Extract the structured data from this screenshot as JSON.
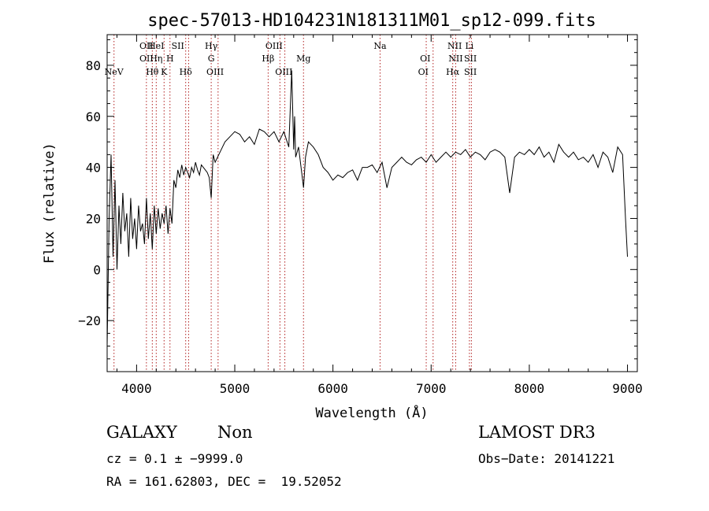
{
  "chart_data": {
    "type": "line",
    "title": "spec-57013-HD104231N181311M01_sp12-099.fits",
    "xlabel": "Wavelength (Å)",
    "ylabel": "Flux (relative)",
    "xlim": [
      3700,
      9100
    ],
    "ylim": [
      -40,
      92
    ],
    "x_ticks": [
      {
        "value": 4000,
        "label": "4000"
      },
      {
        "value": 5000,
        "label": "5000"
      },
      {
        "value": 6000,
        "label": "6000"
      },
      {
        "value": 7000,
        "label": "7000"
      },
      {
        "value": 8000,
        "label": "8000"
      },
      {
        "value": 9000,
        "label": "9000"
      }
    ],
    "y_ticks": [
      {
        "value": -20,
        "label": "−20"
      },
      {
        "value": 0,
        "label": "0"
      },
      {
        "value": 20,
        "label": "20"
      },
      {
        "value": 40,
        "label": "40"
      },
      {
        "value": 60,
        "label": "60"
      },
      {
        "value": 80,
        "label": "80"
      }
    ],
    "grid": false,
    "line_color": "#000000",
    "line_marker_color": "#b22222",
    "spectral_lines": [
      {
        "name": "NeV",
        "wavelength": 3770,
        "row": 3
      },
      {
        "name": "OII",
        "wavelength": 4100,
        "row": 1
      },
      {
        "name": "OII",
        "wavelength": 4100,
        "row": 2
      },
      {
        "name": "Hθ",
        "wavelength": 4160,
        "row": 3
      },
      {
        "name": "HeI",
        "wavelength": 4200,
        "row": 1
      },
      {
        "name": "Hη",
        "wavelength": 4200,
        "row": 2
      },
      {
        "name": "K",
        "wavelength": 4280,
        "row": 3
      },
      {
        "name": "H",
        "wavelength": 4340,
        "row": 2
      },
      {
        "name": "SII",
        "wavelength": 4420,
        "row": 1
      },
      {
        "name": "Hδ",
        "wavelength": 4500,
        "row": 3
      },
      {
        "name": "Hγ",
        "wavelength": 4760,
        "row": 1
      },
      {
        "name": "G",
        "wavelength": 4760,
        "row": 2
      },
      {
        "name": "OIII",
        "wavelength": 4800,
        "row": 3
      },
      {
        "name": "Hβ",
        "wavelength": 5340,
        "row": 2
      },
      {
        "name": "OIII",
        "wavelength": 5400,
        "row": 1
      },
      {
        "name": "OIII",
        "wavelength": 5500,
        "row": 3
      },
      {
        "name": "Mg",
        "wavelength": 5700,
        "row": 2
      },
      {
        "name": "Na",
        "wavelength": 6480,
        "row": 1
      },
      {
        "name": "OI",
        "wavelength": 6940,
        "row": 2
      },
      {
        "name": "OI",
        "wavelength": 6920,
        "row": 3
      },
      {
        "name": "NII",
        "wavelength": 7240,
        "row": 1
      },
      {
        "name": "NII",
        "wavelength": 7250,
        "row": 2
      },
      {
        "name": "Hα",
        "wavelength": 7220,
        "row": 3
      },
      {
        "name": "Li",
        "wavelength": 7390,
        "row": 1
      },
      {
        "name": "SII",
        "wavelength": 7400,
        "row": 2
      },
      {
        "name": "SII",
        "wavelength": 7400,
        "row": 3
      }
    ],
    "marker_wavelengths": [
      3770,
      4100,
      4160,
      4200,
      4280,
      4340,
      4500,
      4530,
      4760,
      4830,
      5340,
      5460,
      5510,
      5700,
      6480,
      6950,
      7020,
      7220,
      7250,
      7390,
      7410
    ],
    "series": [
      {
        "x": [
          3700,
          3720,
          3740,
          3760,
          3780,
          3800,
          3820,
          3840,
          3860,
          3880,
          3900,
          3920,
          3940,
          3960,
          3980,
          4000,
          4020,
          4040,
          4060,
          4080,
          4100,
          4120,
          4140,
          4160,
          4180,
          4200,
          4220,
          4240,
          4260,
          4280,
          4300,
          4320,
          4340,
          4360,
          4380,
          4400,
          4420,
          4440,
          4460,
          4480,
          4500,
          4520,
          4540,
          4560,
          4580,
          4600,
          4620,
          4640,
          4660,
          4680,
          4700,
          4720,
          4740,
          4760,
          4780,
          4800,
          4850,
          4900,
          4950,
          5000,
          5050,
          5100,
          5150,
          5200,
          5250,
          5300,
          5350,
          5400,
          5450,
          5500,
          5550,
          5580,
          5600,
          5610,
          5620,
          5650,
          5700,
          5720,
          5750,
          5800,
          5850,
          5900,
          5950,
          6000,
          6050,
          6100,
          6150,
          6200,
          6250,
          6300,
          6350,
          6400,
          6450,
          6500,
          6550,
          6600,
          6650,
          6700,
          6750,
          6800,
          6850,
          6900,
          6950,
          7000,
          7050,
          7100,
          7150,
          7200,
          7250,
          7300,
          7350,
          7400,
          7450,
          7500,
          7550,
          7600,
          7650,
          7700,
          7750,
          7800,
          7850,
          7900,
          7950,
          8000,
          8050,
          8100,
          8150,
          8200,
          8250,
          8300,
          8350,
          8400,
          8450,
          8500,
          8550,
          8600,
          8650,
          8700,
          8750,
          8800,
          8850,
          8900,
          8950,
          8980,
          9000
        ],
        "y": [
          -30,
          20,
          45,
          5,
          35,
          0,
          25,
          10,
          30,
          15,
          22,
          5,
          28,
          12,
          20,
          8,
          25,
          15,
          18,
          10,
          28,
          12,
          22,
          8,
          25,
          14,
          24,
          16,
          22,
          18,
          25,
          14,
          24,
          18,
          35,
          32,
          39,
          36,
          41,
          37,
          40,
          38,
          36,
          40,
          38,
          42,
          39,
          37,
          41,
          40,
          39,
          38,
          36,
          28,
          45,
          42,
          46,
          50,
          52,
          54,
          53,
          50,
          52,
          49,
          55,
          54,
          52,
          54,
          50,
          54,
          48,
          78,
          47,
          60,
          44,
          48,
          32,
          44,
          50,
          48,
          45,
          40,
          38,
          35,
          37,
          36,
          38,
          39,
          35,
          40,
          40,
          41,
          38,
          42,
          32,
          40,
          42,
          44,
          42,
          41,
          43,
          44,
          42,
          45,
          42,
          44,
          46,
          44,
          46,
          45,
          47,
          44,
          46,
          45,
          43,
          46,
          47,
          46,
          44,
          30,
          44,
          46,
          45,
          47,
          45,
          48,
          44,
          46,
          42,
          49,
          46,
          44,
          46,
          43,
          44,
          42,
          45,
          40,
          46,
          44,
          38,
          48,
          45,
          20,
          5
        ]
      }
    ]
  },
  "footer": {
    "object_class": "GALAXY",
    "subclass": "Non",
    "survey": "LAMOST DR3",
    "cz_line": "cz = 0.1 ± −9999.0",
    "obs_date": "Obs−Date: 20141221",
    "radec_line": "RA = 161.62803, DEC =  19.52052"
  }
}
